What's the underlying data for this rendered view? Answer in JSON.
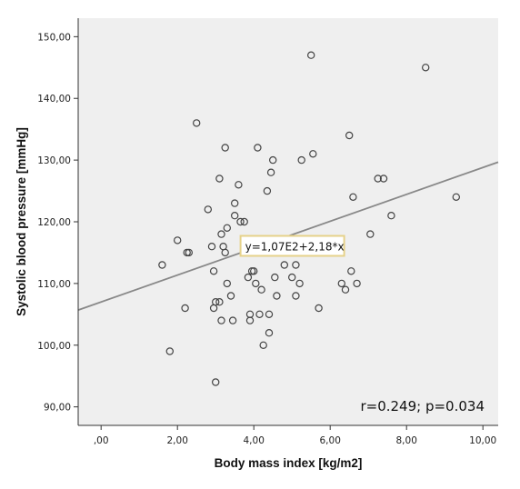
{
  "chart_data": {
    "type": "scatter",
    "xlabel": "Body mass index [kg/m2]",
    "ylabel": "Systolic blood pressure [mmHg]",
    "xlim": [
      -0.6,
      10.4
    ],
    "ylim": [
      87,
      153
    ],
    "x_ticks": [
      0,
      2,
      4,
      6,
      8,
      10
    ],
    "x_tick_labels": [
      ",00",
      "2,00",
      "4,00",
      "6,00",
      "8,00",
      "10,00"
    ],
    "y_ticks": [
      90,
      100,
      110,
      120,
      130,
      140,
      150
    ],
    "y_tick_labels": [
      "90,00",
      "100,00",
      "110,00",
      "120,00",
      "130,00",
      "140,00",
      "150,00"
    ],
    "fit_line": {
      "intercept": 107,
      "slope": 2.18,
      "label": "y=1,07E2+2,18*x"
    },
    "annotation": "r=0.249; p=0.034",
    "grid": false,
    "colors": {
      "plot_bg": "#efefef",
      "point": "#444444",
      "line": "#888888",
      "label_border": "#e6d28a"
    },
    "points": [
      [
        1.6,
        113
      ],
      [
        1.8,
        99
      ],
      [
        2.0,
        117
      ],
      [
        2.2,
        106
      ],
      [
        2.25,
        115
      ],
      [
        2.3,
        115
      ],
      [
        2.5,
        136
      ],
      [
        2.8,
        122
      ],
      [
        2.9,
        116
      ],
      [
        2.95,
        112
      ],
      [
        3.0,
        107
      ],
      [
        2.95,
        106
      ],
      [
        3.0,
        94
      ],
      [
        3.1,
        127
      ],
      [
        3.1,
        107
      ],
      [
        3.15,
        104
      ],
      [
        3.15,
        118
      ],
      [
        3.2,
        116
      ],
      [
        3.25,
        115
      ],
      [
        3.25,
        132
      ],
      [
        3.3,
        119
      ],
      [
        3.3,
        110
      ],
      [
        3.4,
        108
      ],
      [
        3.45,
        104
      ],
      [
        3.5,
        121
      ],
      [
        3.5,
        123
      ],
      [
        3.6,
        126
      ],
      [
        3.65,
        120
      ],
      [
        3.75,
        120
      ],
      [
        3.8,
        117
      ],
      [
        3.85,
        111
      ],
      [
        3.9,
        105
      ],
      [
        3.9,
        104
      ],
      [
        3.95,
        112
      ],
      [
        4.0,
        112
      ],
      [
        4.05,
        110
      ],
      [
        4.0,
        116
      ],
      [
        4.1,
        132
      ],
      [
        4.15,
        105
      ],
      [
        4.2,
        109
      ],
      [
        4.25,
        100
      ],
      [
        4.35,
        125
      ],
      [
        4.4,
        102
      ],
      [
        4.4,
        105
      ],
      [
        4.45,
        128
      ],
      [
        4.5,
        130
      ],
      [
        4.55,
        111
      ],
      [
        4.6,
        108
      ],
      [
        4.8,
        113
      ],
      [
        5.0,
        111
      ],
      [
        5.1,
        113
      ],
      [
        5.1,
        108
      ],
      [
        5.2,
        110
      ],
      [
        5.25,
        130
      ],
      [
        5.5,
        147
      ],
      [
        5.55,
        131
      ],
      [
        5.7,
        106
      ],
      [
        6.3,
        110
      ],
      [
        6.4,
        109
      ],
      [
        6.5,
        134
      ],
      [
        6.55,
        112
      ],
      [
        6.6,
        124
      ],
      [
        6.7,
        110
      ],
      [
        7.05,
        118
      ],
      [
        7.25,
        127
      ],
      [
        7.4,
        127
      ],
      [
        7.6,
        121
      ],
      [
        8.5,
        145
      ],
      [
        9.3,
        124
      ]
    ]
  }
}
